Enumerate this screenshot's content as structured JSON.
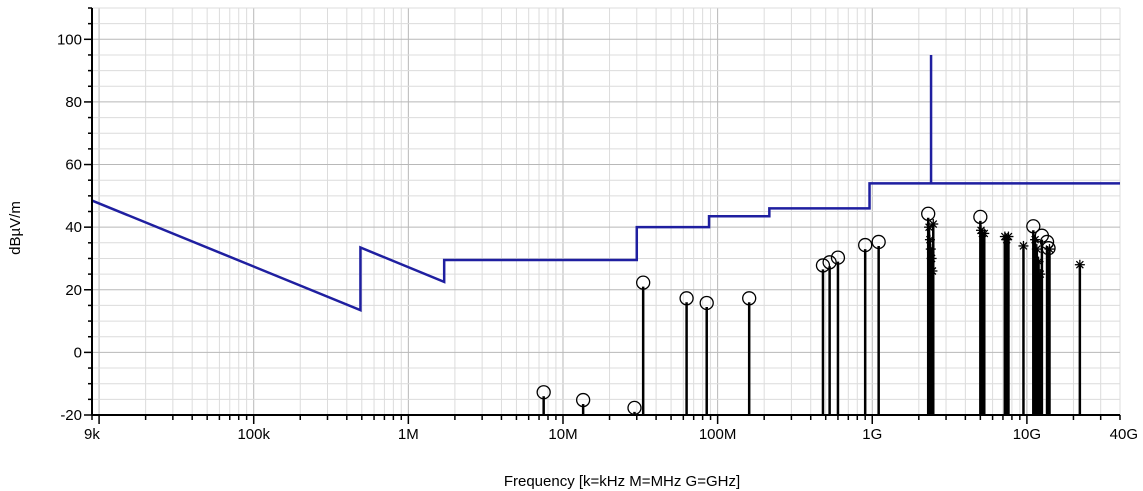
{
  "chart_data": {
    "type": "line",
    "xlabel": "Frequency [k=kHz M=MHz G=GHz]",
    "ylabel": "dBµV/m",
    "xscale": "log",
    "xlim": [
      9000,
      40000000000
    ],
    "ylim": [
      -20,
      110
    ],
    "grid": true,
    "x_ticks": [
      {
        "value": 9000,
        "label": "9k"
      },
      {
        "value": 100000,
        "label": "100k"
      },
      {
        "value": 1000000,
        "label": "1M"
      },
      {
        "value": 10000000,
        "label": "10M"
      },
      {
        "value": 100000000,
        "label": "100M"
      },
      {
        "value": 1000000000,
        "label": "1G"
      },
      {
        "value": 10000000000,
        "label": "10G"
      },
      {
        "value": 40000000000,
        "label": "40G"
      }
    ],
    "y_ticks": [
      {
        "value": -20,
        "label": "-20"
      },
      {
        "value": 0,
        "label": "0"
      },
      {
        "value": 20,
        "label": "20"
      },
      {
        "value": 40,
        "label": "40"
      },
      {
        "value": 60,
        "label": "60"
      },
      {
        "value": 80,
        "label": "80"
      },
      {
        "value": 100,
        "label": "100"
      }
    ],
    "limit_line": {
      "color": "#1f1fa0",
      "points": [
        [
          9000,
          48.5
        ],
        [
          490000,
          13.5
        ],
        [
          490000,
          33.5
        ],
        [
          1705000,
          22.5
        ],
        [
          1705000,
          29.5
        ],
        [
          30000000,
          29.5
        ],
        [
          30000000,
          40
        ],
        [
          88000000,
          40
        ],
        [
          88000000,
          43.5
        ],
        [
          216000000,
          43.5
        ],
        [
          216000000,
          46
        ],
        [
          960000000,
          46
        ],
        [
          960000000,
          54
        ],
        [
          2400000000,
          54
        ],
        [
          2400000000,
          95
        ],
        [
          2400000000,
          54
        ],
        [
          40000000000,
          54
        ]
      ]
    },
    "emissions": {
      "color": "#000000",
      "points": [
        {
          "x": 7500000,
          "y": -14,
          "marker": "circle"
        },
        {
          "x": 13500000,
          "y": -16.5,
          "marker": "circle"
        },
        {
          "x": 29000000,
          "y": -19,
          "marker": "circle"
        },
        {
          "x": 33000000,
          "y": 21,
          "marker": "circle"
        },
        {
          "x": 63000000,
          "y": 16,
          "marker": "circle"
        },
        {
          "x": 85000000,
          "y": 14.5,
          "marker": "circle"
        },
        {
          "x": 160000000,
          "y": 16,
          "marker": "circle"
        },
        {
          "x": 480000000,
          "y": 26.5,
          "marker": "circle"
        },
        {
          "x": 530000000,
          "y": 27.5,
          "marker": "circle"
        },
        {
          "x": 600000000,
          "y": 29,
          "marker": "circle"
        },
        {
          "x": 900000000,
          "y": 33,
          "marker": "circle"
        },
        {
          "x": 1100000000,
          "y": 34,
          "marker": "circle"
        },
        {
          "x": 2300000000,
          "y": 43,
          "marker": "circle"
        },
        {
          "x": 2330000000,
          "y": 40,
          "marker": "star"
        },
        {
          "x": 2360000000,
          "y": 36,
          "marker": "star"
        },
        {
          "x": 2390000000,
          "y": 33,
          "marker": "star"
        },
        {
          "x": 2420000000,
          "y": 30,
          "marker": "star"
        },
        {
          "x": 2450000000,
          "y": 26,
          "marker": "star"
        },
        {
          "x": 2480000000,
          "y": 41,
          "marker": "star"
        },
        {
          "x": 5000000000,
          "y": 42,
          "marker": "circle"
        },
        {
          "x": 5050000000,
          "y": 39,
          "marker": "star"
        },
        {
          "x": 5150000000,
          "y": 38,
          "marker": "star"
        },
        {
          "x": 5300000000,
          "y": 38,
          "marker": "star"
        },
        {
          "x": 7200000000,
          "y": 37,
          "marker": "star"
        },
        {
          "x": 7400000000,
          "y": 36,
          "marker": "star"
        },
        {
          "x": 7600000000,
          "y": 37,
          "marker": "star"
        },
        {
          "x": 9500000000,
          "y": 34,
          "marker": "star"
        },
        {
          "x": 11000000000,
          "y": 39,
          "marker": "circle"
        },
        {
          "x": 11300000000,
          "y": 36,
          "marker": "star"
        },
        {
          "x": 11600000000,
          "y": 33,
          "marker": "star"
        },
        {
          "x": 11900000000,
          "y": 29,
          "marker": "star"
        },
        {
          "x": 12200000000,
          "y": 25,
          "marker": "star"
        },
        {
          "x": 12500000000,
          "y": 36,
          "marker": "circle"
        },
        {
          "x": 13500000000,
          "y": 34,
          "marker": "circle"
        },
        {
          "x": 13800000000,
          "y": 32,
          "marker": "circle"
        },
        {
          "x": 14000000000,
          "y": 33,
          "marker": "star"
        },
        {
          "x": 22000000000,
          "y": 28,
          "marker": "star"
        }
      ]
    }
  }
}
